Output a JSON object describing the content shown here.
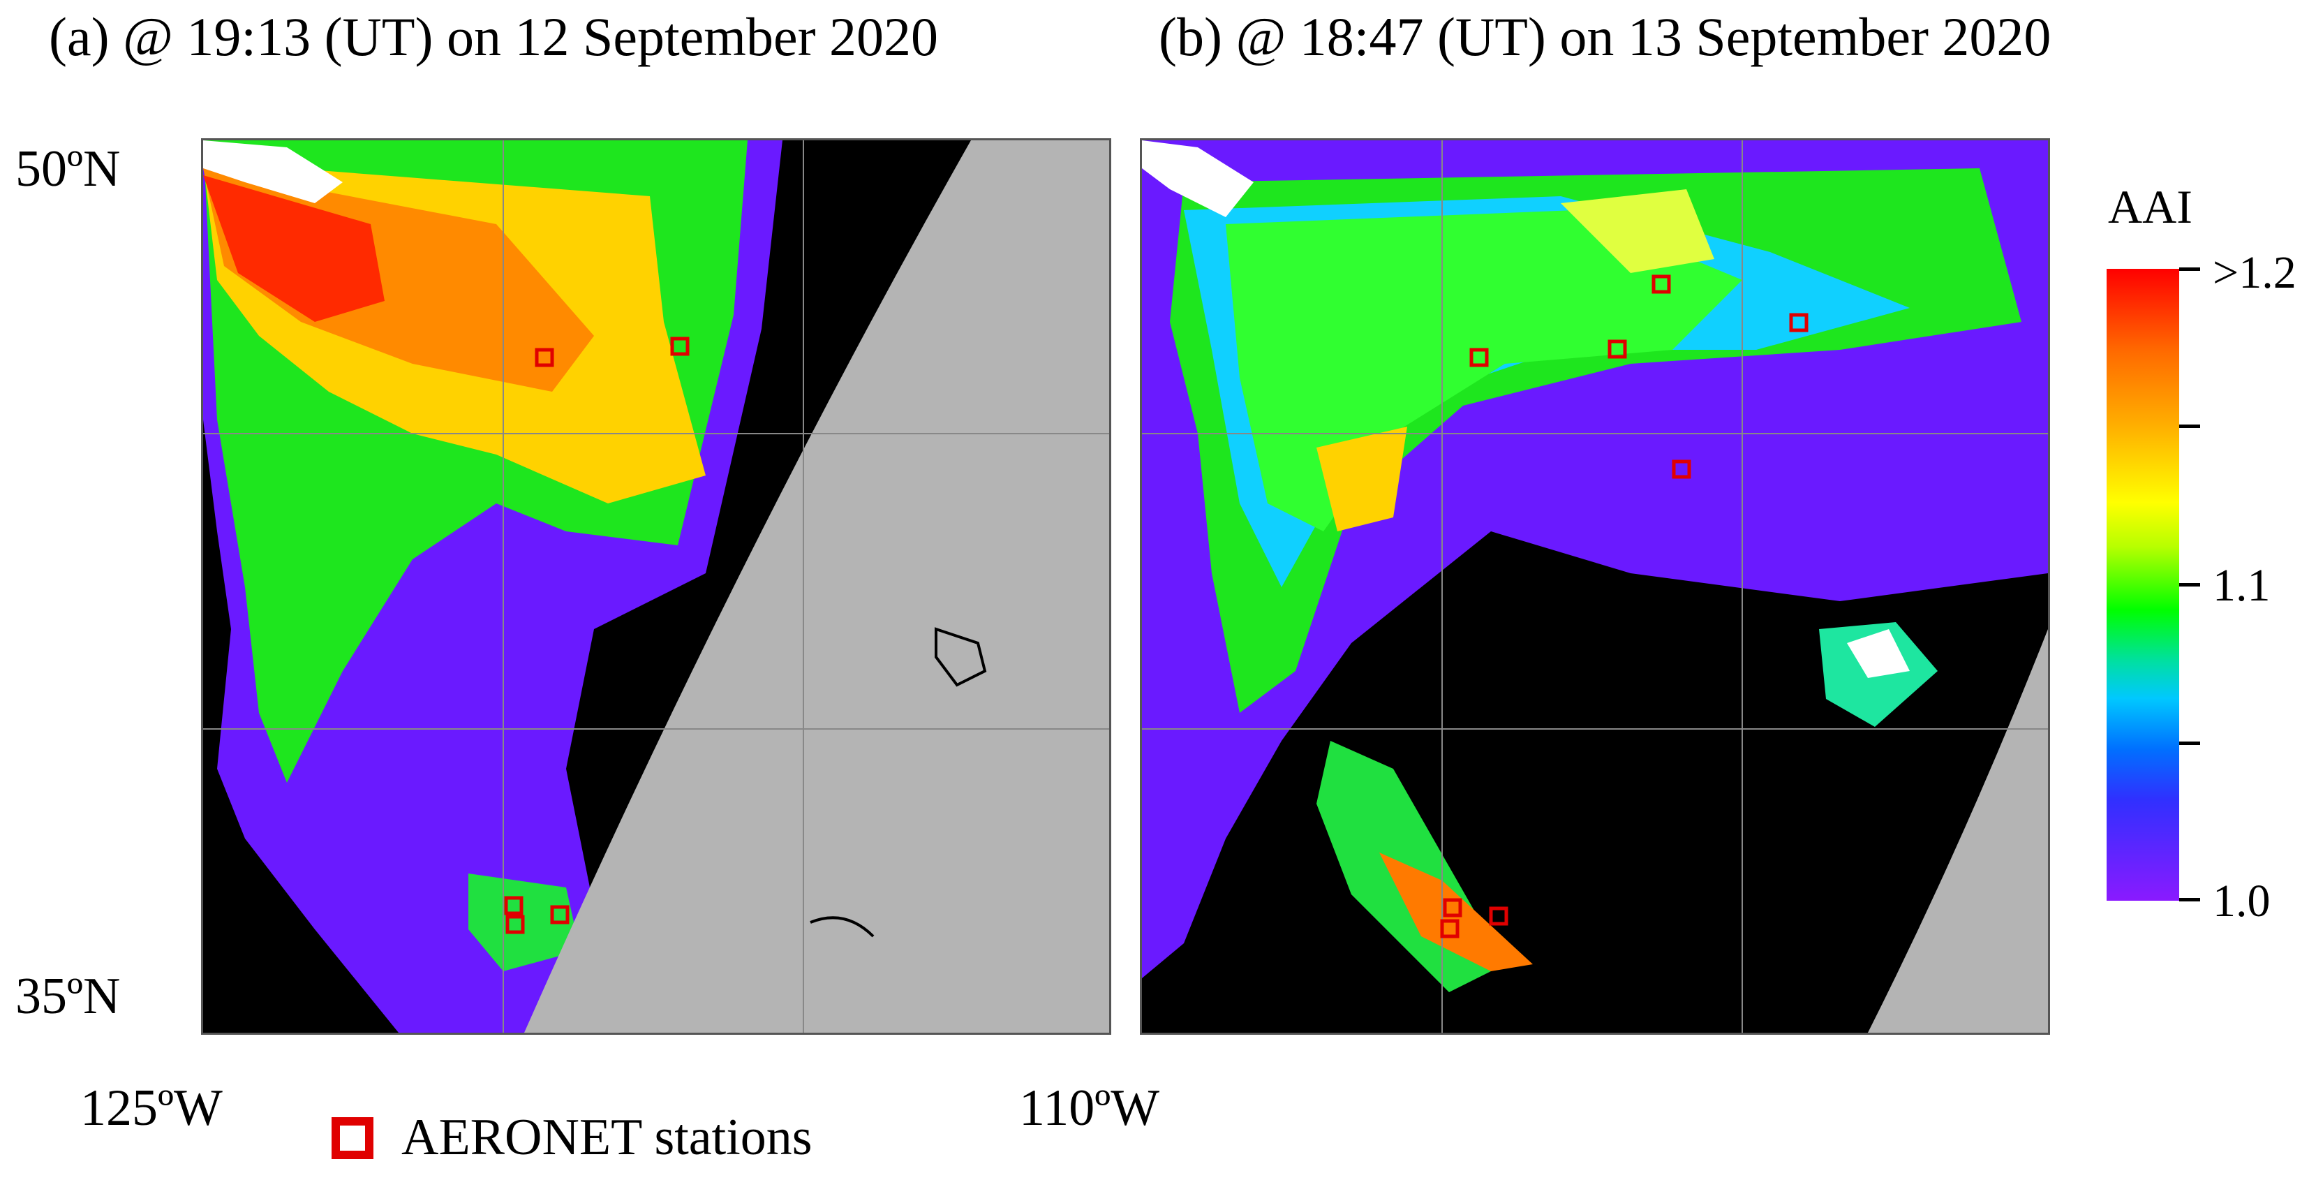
{
  "panels": [
    {
      "title": "(a) @ 19:13 (UT) on 12 September 2020"
    },
    {
      "title": "(b) @ 18:47 (UT) on 13 September 2020"
    }
  ],
  "axes": {
    "lat_top": "50ºN",
    "lat_bottom": "35ºN",
    "lon_left": "125ºW",
    "lon_right": "110ºW"
  },
  "legend": {
    "label": "AERONET stations",
    "marker_color": "#e00000"
  },
  "colorbar": {
    "title": "AAI",
    "labels": [
      ">1.2",
      "1.1",
      "1.0"
    ],
    "colors": [
      "#ff0000",
      "#ffb000",
      "#ffff00",
      "#00ff00",
      "#00c8ff",
      "#3030ff",
      "#8a1aff"
    ]
  },
  "colors": {
    "no_data": "#b4b4b4",
    "background": "#000000",
    "station": "#e00000"
  }
}
